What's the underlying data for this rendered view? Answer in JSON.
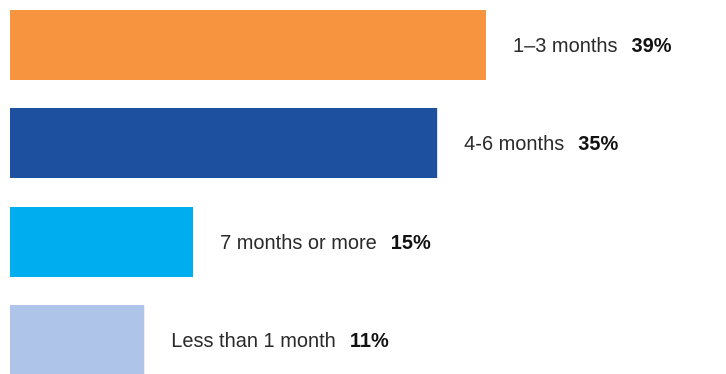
{
  "chart_data": {
    "type": "bar",
    "orientation": "horizontal",
    "title": "",
    "xlabel": "",
    "ylabel": "",
    "grid": false,
    "legend": "none",
    "categories": [
      "1–3 months",
      "4-6 months",
      "7 months or more",
      "Less than 1 month"
    ],
    "values": [
      39,
      35,
      15,
      11
    ],
    "value_labels": [
      "39%",
      "35%",
      "15%",
      "11%"
    ],
    "colors": [
      "#f79440",
      "#1e50a0",
      "#00aeef",
      "#aec4e8"
    ],
    "xlim": [
      0,
      39
    ]
  }
}
